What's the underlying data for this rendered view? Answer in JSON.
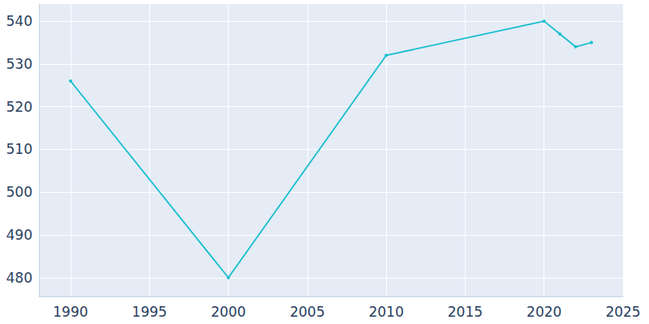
{
  "chart_data": {
    "type": "line",
    "x": [
      1990,
      2000,
      2010,
      2020,
      2021,
      2022,
      2023
    ],
    "values": [
      526,
      480,
      532,
      540,
      537,
      534,
      535
    ],
    "color": "#17becf",
    "marker": "circle",
    "xlim": [
      1988,
      2025
    ],
    "xticks": [
      1990,
      1995,
      2000,
      2005,
      2010,
      2015,
      2020,
      2025
    ],
    "ylim": [
      475.6,
      544
    ],
    "yticks": [
      480,
      490,
      500,
      510,
      520,
      530,
      540
    ],
    "grid": true
  }
}
